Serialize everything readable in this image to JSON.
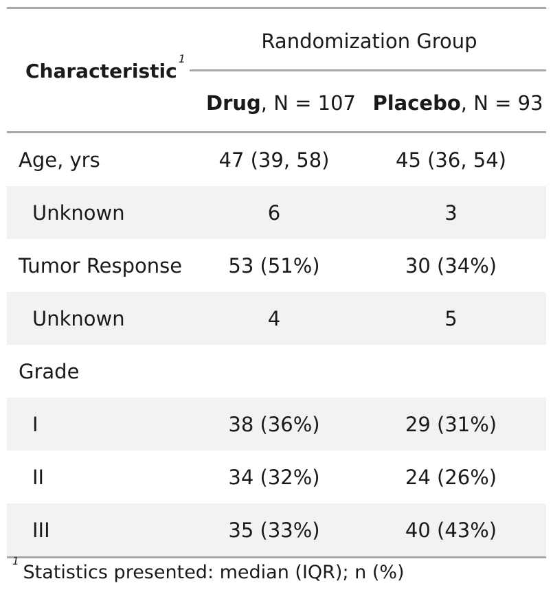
{
  "header": {
    "characteristic": "Characteristic",
    "characteristic_footnote_mark": "1",
    "spanner": "Randomization Group",
    "columns": [
      {
        "name": "Drug",
        "n_label": ", N = 107"
      },
      {
        "name": "Placebo",
        "n_label": ", N = 93"
      }
    ]
  },
  "rows": [
    {
      "label": "Age, yrs",
      "drug": "47 (39, 58)",
      "placebo": "45 (36, 54)"
    },
    {
      "label": "Unknown",
      "drug": "6",
      "placebo": "3"
    },
    {
      "label": "Tumor Response",
      "drug": "53 (51%)",
      "placebo": "30 (34%)"
    },
    {
      "label": "Unknown",
      "drug": "4",
      "placebo": "5"
    },
    {
      "label": "Grade",
      "drug": "",
      "placebo": ""
    },
    {
      "label": "I",
      "drug": "38 (36%)",
      "placebo": "29 (31%)"
    },
    {
      "label": "II",
      "drug": "34 (32%)",
      "placebo": "24 (26%)"
    },
    {
      "label": "III",
      "drug": "35 (33%)",
      "placebo": "40 (43%)"
    }
  ],
  "footnote": {
    "mark": "1",
    "text": "Statistics presented: median (IQR); n (%)"
  }
}
